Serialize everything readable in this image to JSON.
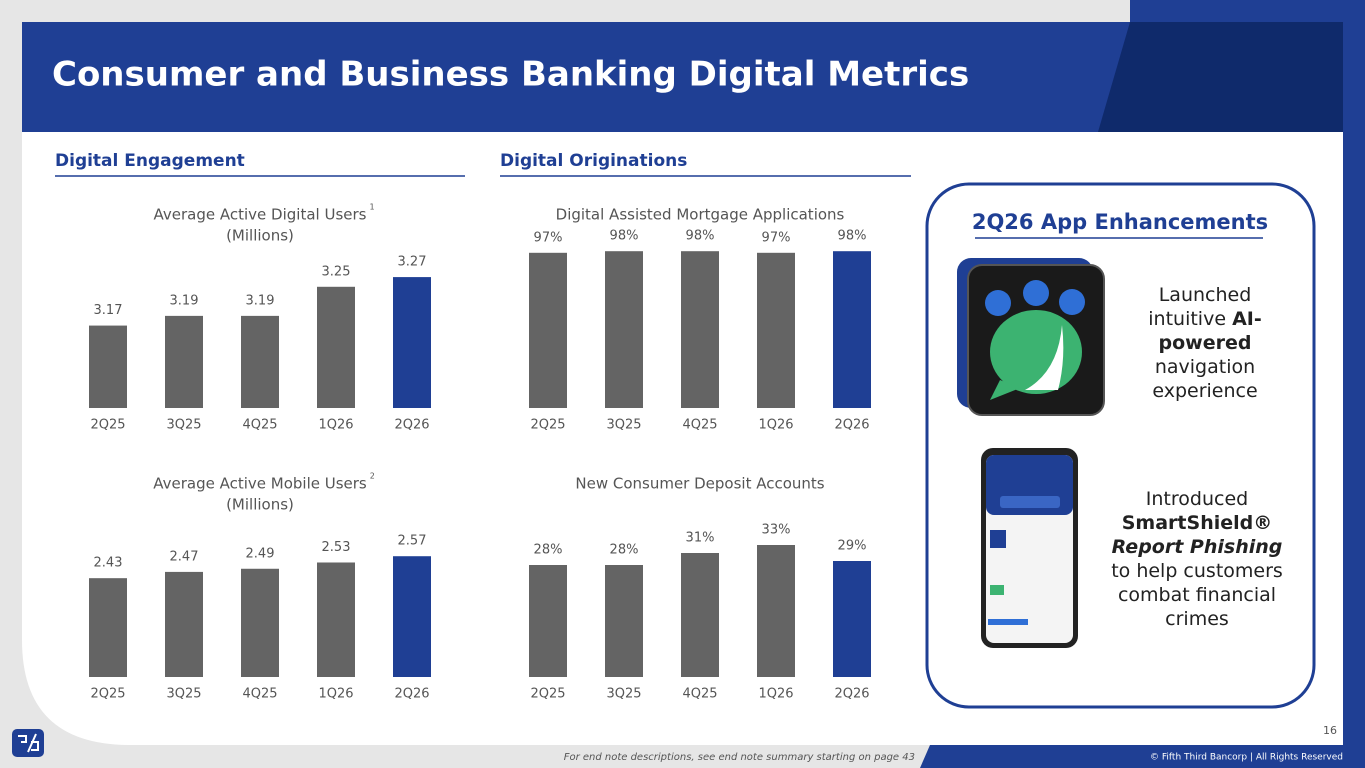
{
  "header": {
    "title": "Consumer and Business Banking Digital Metrics"
  },
  "sections": {
    "engagement": "Digital Engagement",
    "originations": "Digital Originations"
  },
  "chart_data": [
    {
      "type": "bar",
      "title": "Average Active Digital Users",
      "title_note": "1",
      "subtitle": "(Millions)",
      "categories": [
        "2Q25",
        "3Q25",
        "4Q25",
        "1Q26",
        "2Q26"
      ],
      "values": [
        3.17,
        3.19,
        3.19,
        3.25,
        3.27
      ],
      "colors": [
        "#646464",
        "#646464",
        "#646464",
        "#646464",
        "#1f3f94"
      ],
      "ylim": [
        3.0,
        3.33
      ]
    },
    {
      "type": "bar",
      "title": "Digital Assisted Mortgage Applications",
      "categories": [
        "2Q25",
        "3Q25",
        "4Q25",
        "1Q26",
        "2Q26"
      ],
      "values": [
        97,
        98,
        98,
        97,
        98
      ],
      "value_labels": [
        "97%",
        "98%",
        "98%",
        "97%",
        "98%"
      ],
      "colors": [
        "#646464",
        "#646464",
        "#646464",
        "#646464",
        "#1f3f94"
      ],
      "ylim": [
        0,
        100
      ]
    },
    {
      "type": "bar",
      "title": "Average Active Mobile Users",
      "title_note": "2",
      "subtitle": "(Millions)",
      "categories": [
        "2Q25",
        "3Q25",
        "4Q25",
        "1Q26",
        "2Q26"
      ],
      "values": [
        2.43,
        2.47,
        2.49,
        2.53,
        2.57
      ],
      "colors": [
        "#646464",
        "#646464",
        "#646464",
        "#646464",
        "#1f3f94"
      ],
      "ylim": [
        1.8,
        2.82
      ]
    },
    {
      "type": "bar",
      "title": "New Consumer Deposit Accounts",
      "categories": [
        "2Q25",
        "3Q25",
        "4Q25",
        "1Q26",
        "2Q26"
      ],
      "values": [
        28,
        28,
        31,
        33,
        29
      ],
      "value_labels": [
        "28%",
        "28%",
        "31%",
        "33%",
        "29%"
      ],
      "colors": [
        "#646464",
        "#646464",
        "#646464",
        "#646464",
        "#1f3f94"
      ],
      "ylim": [
        0,
        40
      ]
    }
  ],
  "panel": {
    "title": "2Q26 App Enhancements",
    "items": [
      {
        "parts": [
          "Launched intuitive ",
          "AI-powered",
          " navigation experience"
        ]
      },
      {
        "parts": [
          "Introduced ",
          "SmartShield®",
          "Report Phishing",
          " to help customers combat financial crimes"
        ]
      }
    ]
  },
  "footer": {
    "note": "For end note descriptions, see end note summary starting on page 43",
    "copyright": "© Fifth Third Bancorp | All Rights Reserved",
    "page": "16"
  }
}
